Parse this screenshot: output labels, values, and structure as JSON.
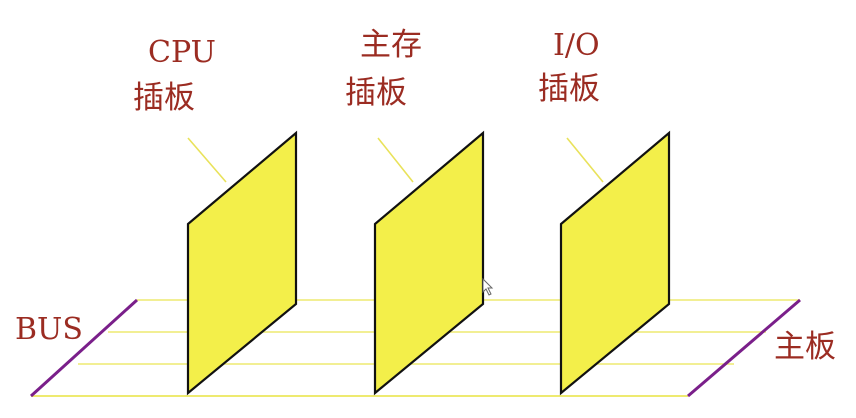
{
  "labels": {
    "cpu_line1": "CPU",
    "cpu_line2": "插板",
    "memory_line1": "主存",
    "memory_line2": "插板",
    "io_line1": "I/O",
    "io_line2": "插板",
    "bus": "BUS",
    "motherboard": "主板"
  },
  "colors": {
    "label_text": "#9b2c22",
    "board_fill": "#f3ef4a",
    "board_outline": "#111111",
    "bus_lines": "#eeea70",
    "motherboard_edges": "#7a1f8a",
    "leader_lines": "#e9e25a"
  }
}
